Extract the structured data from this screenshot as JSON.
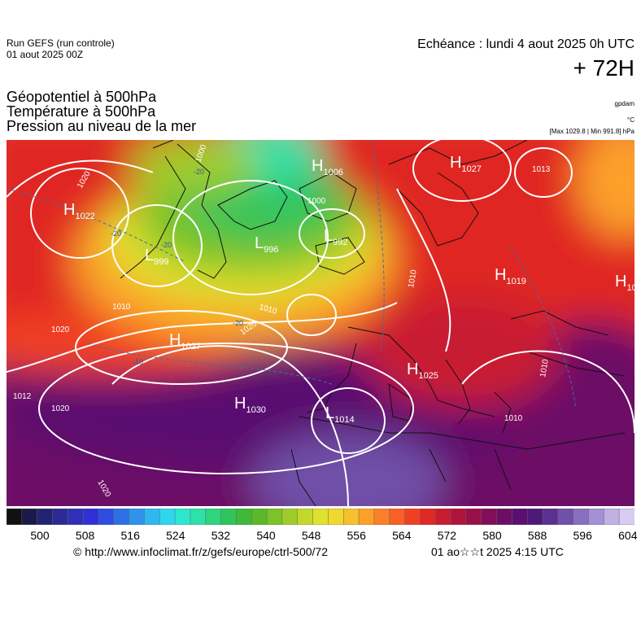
{
  "header": {
    "run_title": "Run GEFS (run controle)",
    "run_date": "01 aout 2025 00Z",
    "echeance": "Echéance : lundi 4 aout 2025 0h UTC",
    "lead": "+ 72H",
    "fields": [
      "Géopotentiel à 500hPa",
      "Température à 500hPa",
      "Pression au niveau de la mer"
    ],
    "unit_gpdam": "gpdam",
    "unit_celsius": "°C",
    "extremes": "[Max 1029.8 | Min 991.8] hPa"
  },
  "map": {
    "pressure_centers": [
      {
        "kind": "H",
        "value": "1022"
      },
      {
        "kind": "H",
        "value": "1027"
      },
      {
        "kind": "H",
        "value": "1030"
      },
      {
        "kind": "H",
        "value": "1006"
      },
      {
        "kind": "H",
        "value": "1027"
      },
      {
        "kind": "H",
        "value": "1019"
      },
      {
        "kind": "H",
        "value": "1025"
      },
      {
        "kind": "H",
        "value": "10"
      },
      {
        "kind": "L",
        "value": "999"
      },
      {
        "kind": "L",
        "value": "996"
      },
      {
        "kind": "L",
        "value": "992"
      },
      {
        "kind": "L",
        "value": "1014"
      }
    ],
    "isobar_labels": [
      "1020",
      "1020",
      "1010",
      "1000",
      "1000",
      "1010",
      "1020",
      "1012",
      "1020",
      "1020",
      "1010",
      "1010",
      "1010",
      "1013"
    ],
    "temperature_labels": [
      "-20",
      "-20",
      "-20",
      "-10",
      "-20"
    ]
  },
  "colorbar": {
    "colors": [
      "#111111",
      "#1a1a4a",
      "#232373",
      "#2b2b96",
      "#2f2fb8",
      "#3030d6",
      "#2f4de0",
      "#2f6fe6",
      "#2f93ec",
      "#2fb7f0",
      "#2fd6f0",
      "#2fe6d0",
      "#2fe0a8",
      "#2fd47e",
      "#30c45a",
      "#40b83a",
      "#5cb82a",
      "#7cc228",
      "#a0cc2a",
      "#c4d82c",
      "#e0e02e",
      "#f0d82e",
      "#f8c02c",
      "#fca02a",
      "#fc8028",
      "#f86026",
      "#f04024",
      "#e02824",
      "#c81c30",
      "#b0143c",
      "#98104a",
      "#800e58",
      "#6c0e66",
      "#5a1070",
      "#4e1a7a",
      "#5a3090",
      "#7050a8",
      "#8870c0",
      "#a490d4",
      "#c0b0e4",
      "#d8ccf0"
    ],
    "ticks": [
      "500",
      "508",
      "516",
      "524",
      "532",
      "540",
      "548",
      "556",
      "564",
      "572",
      "580",
      "588",
      "596",
      "604"
    ]
  },
  "footer": {
    "credit": "© http://www.infoclimat.fr/z/gefs/europe/ctrl-500/72",
    "stamp": "01 ao☆☆t 2025  4:15 UTC"
  }
}
